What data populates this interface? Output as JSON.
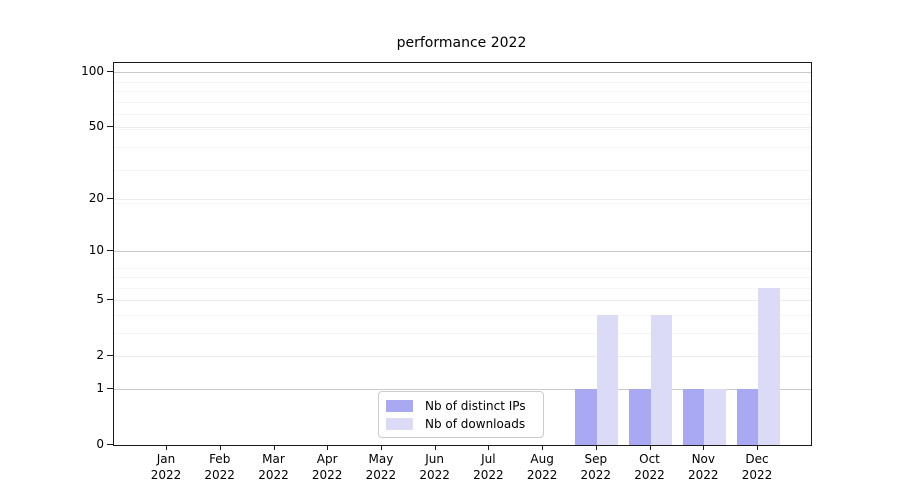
{
  "title": "performance 2022",
  "legend": {
    "items": [
      {
        "label": "Nb of distinct IPs",
        "color": "#a8a8f3"
      },
      {
        "label": "Nb of downloads",
        "color": "#dbdbf8"
      }
    ]
  },
  "chart_data": {
    "type": "bar",
    "title": "performance 2022",
    "categories": [
      "Jan 2022",
      "Feb 2022",
      "Mar 2022",
      "Apr 2022",
      "May 2022",
      "Jun 2022",
      "Jul 2022",
      "Aug 2022",
      "Sep 2022",
      "Oct 2022",
      "Nov 2022",
      "Dec 2022"
    ],
    "series": [
      {
        "name": "Nb of distinct IPs",
        "color": "#a8a8f3",
        "values": [
          0,
          0,
          0,
          0,
          0,
          0,
          0,
          0,
          1,
          1,
          1,
          1
        ]
      },
      {
        "name": "Nb of downloads",
        "color": "#dbdbf8",
        "values": [
          0,
          0,
          0,
          0,
          0,
          0,
          0,
          0,
          4,
          4,
          1,
          6
        ]
      }
    ],
    "xlabel": "",
    "ylabel": "",
    "yscale": "log1p",
    "yticks": [
      0,
      1,
      2,
      5,
      10,
      20,
      50,
      100
    ],
    "ylim": [
      0,
      113
    ],
    "grid": true,
    "legend_position": "lower center inside",
    "colors": {
      "grid_major": "#c9c9c9",
      "grid_mid": "#ececec",
      "grid_minor": "#f5f5f5",
      "spine": "#1a1a1a"
    }
  }
}
